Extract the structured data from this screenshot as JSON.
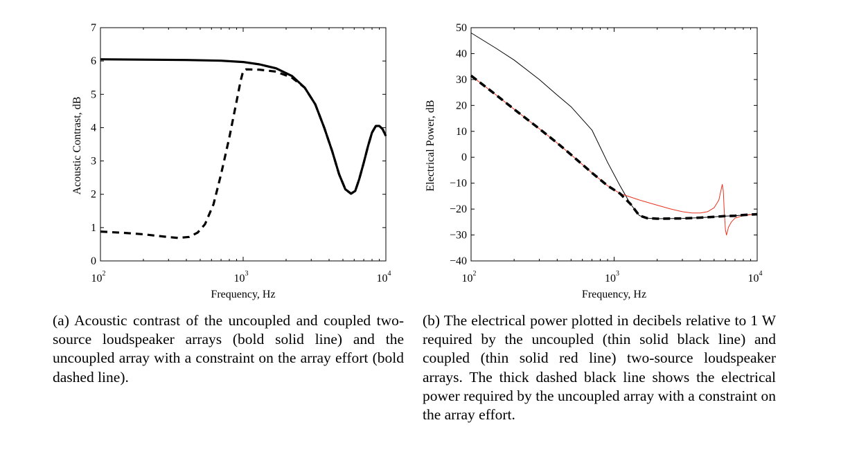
{
  "caption_a": "(a) Acoustic contrast of the uncoupled and coupled two-source loudspeaker arrays (bold solid line) and the uncoupled array with a constraint on the array effort (bold dashed line).",
  "caption_b": "(b) The electrical power plotted in decibels relative to 1 W required by the uncoupled (thin solid black line) and coupled (thin solid red line) two-source loudspeaker arrays. The thick dashed black line shows the electrical power required by the uncoupled array with a constraint on the array effort.",
  "colors": {
    "axis": "#000000",
    "coupled_red": "#e8321e"
  },
  "chart_data": [
    {
      "type": "line",
      "xscale": "log",
      "xlabel": "Frequency, Hz",
      "ylabel": "Acoustic Contrast, dB",
      "xlim": [
        100,
        10000
      ],
      "ylim": [
        0,
        7
      ],
      "xticks": [
        100,
        1000,
        10000
      ],
      "xtick_labels": [
        [
          "10",
          "2"
        ],
        [
          "10",
          "3"
        ],
        [
          "10",
          "4"
        ]
      ],
      "yticks": [
        0,
        1,
        2,
        3,
        4,
        5,
        6,
        7
      ],
      "series": [
        {
          "style": "bold-solid",
          "x": [
            100,
            200,
            400,
            700,
            1000,
            1300,
            1700,
            2200,
            2700,
            3200,
            3700,
            4200,
            4700,
            5200,
            5700,
            6100,
            6500,
            7000,
            7500,
            8000,
            8500,
            9000,
            9500,
            10000
          ],
          "y": [
            6.05,
            6.04,
            6.03,
            6.01,
            5.97,
            5.9,
            5.78,
            5.55,
            5.2,
            4.7,
            4.0,
            3.3,
            2.6,
            2.15,
            2.02,
            2.1,
            2.45,
            2.95,
            3.45,
            3.85,
            4.05,
            4.05,
            3.95,
            3.75
          ]
        },
        {
          "style": "bold-dashed",
          "x": [
            100,
            150,
            200,
            280,
            350,
            420,
            480,
            540,
            620,
            700,
            800,
            900,
            960,
            1000,
            1050,
            1300,
            1700,
            2200,
            2700,
            3200,
            3700,
            4200,
            4700,
            5200,
            5700,
            6100,
            6500,
            7000,
            7500,
            8000,
            8500,
            9000,
            9500,
            10000
          ],
          "y": [
            0.88,
            0.84,
            0.8,
            0.73,
            0.69,
            0.72,
            0.85,
            1.1,
            1.7,
            2.6,
            3.7,
            4.8,
            5.4,
            5.7,
            5.75,
            5.74,
            5.68,
            5.5,
            5.2,
            4.7,
            4.0,
            3.3,
            2.6,
            2.15,
            2.02,
            2.1,
            2.45,
            2.95,
            3.45,
            3.85,
            4.05,
            4.05,
            3.95,
            3.75
          ]
        }
      ]
    },
    {
      "type": "line",
      "xscale": "log",
      "xlabel": "Frequency, Hz",
      "ylabel": "Electrical Power, dB",
      "xlim": [
        100,
        10000
      ],
      "ylim": [
        -40,
        50
      ],
      "xticks": [
        100,
        1000,
        10000
      ],
      "xtick_labels": [
        [
          "10",
          "2"
        ],
        [
          "10",
          "3"
        ],
        [
          "10",
          "4"
        ]
      ],
      "yticks": [
        -40,
        -30,
        -20,
        -10,
        0,
        10,
        20,
        30,
        40,
        50
      ],
      "ytick_labels": [
        "−40",
        "−30",
        "−20",
        "−10",
        "0",
        "10",
        "20",
        "30",
        "40",
        "50"
      ],
      "series": [
        {
          "style": "thin-solid-black",
          "x": [
            100,
            150,
            200,
            300,
            400,
            500,
            700,
            900,
            1100,
            1300,
            1500,
            1700,
            2000,
            3000,
            4000,
            5000,
            6000,
            7000,
            8000,
            9000,
            10000
          ],
          "y": [
            48,
            42,
            37.5,
            30,
            24,
            19.5,
            10.5,
            -2,
            -11,
            -18,
            -22.5,
            -23.5,
            -23.7,
            -23.6,
            -23.3,
            -23,
            -22.7,
            -22.6,
            -22.3,
            -22.1,
            -22
          ]
        },
        {
          "style": "thin-solid-red",
          "x": [
            100,
            150,
            200,
            300,
            400,
            500,
            700,
            900,
            1100,
            1500,
            2000,
            2500,
            3000,
            3500,
            4000,
            4500,
            5000,
            5400,
            5700,
            5800,
            5900,
            6000,
            6100,
            6300,
            6600,
            7000,
            8000,
            9000,
            10000
          ],
          "y": [
            31.5,
            24,
            18.5,
            11,
            5.5,
            1,
            -6,
            -11,
            -14,
            -16.5,
            -18.5,
            -20,
            -21,
            -21.5,
            -21.5,
            -21,
            -19.5,
            -16.5,
            -10.5,
            -13,
            -22,
            -28,
            -30,
            -27,
            -25,
            -23.5,
            -22.5,
            -22.2,
            -22
          ]
        },
        {
          "style": "thick-dashed-black",
          "x": [
            100,
            150,
            200,
            300,
            400,
            500,
            700,
            900,
            1100,
            1300,
            1500,
            1700,
            2000,
            3000,
            4000,
            5000,
            6000,
            7000,
            8000,
            9000,
            10000
          ],
          "y": [
            31.5,
            24,
            18.5,
            11,
            5.5,
            1,
            -6,
            -11,
            -14,
            -18,
            -22.5,
            -23.5,
            -23.7,
            -23.6,
            -23.3,
            -23,
            -22.7,
            -22.6,
            -22.3,
            -22.1,
            -22
          ]
        }
      ]
    }
  ]
}
